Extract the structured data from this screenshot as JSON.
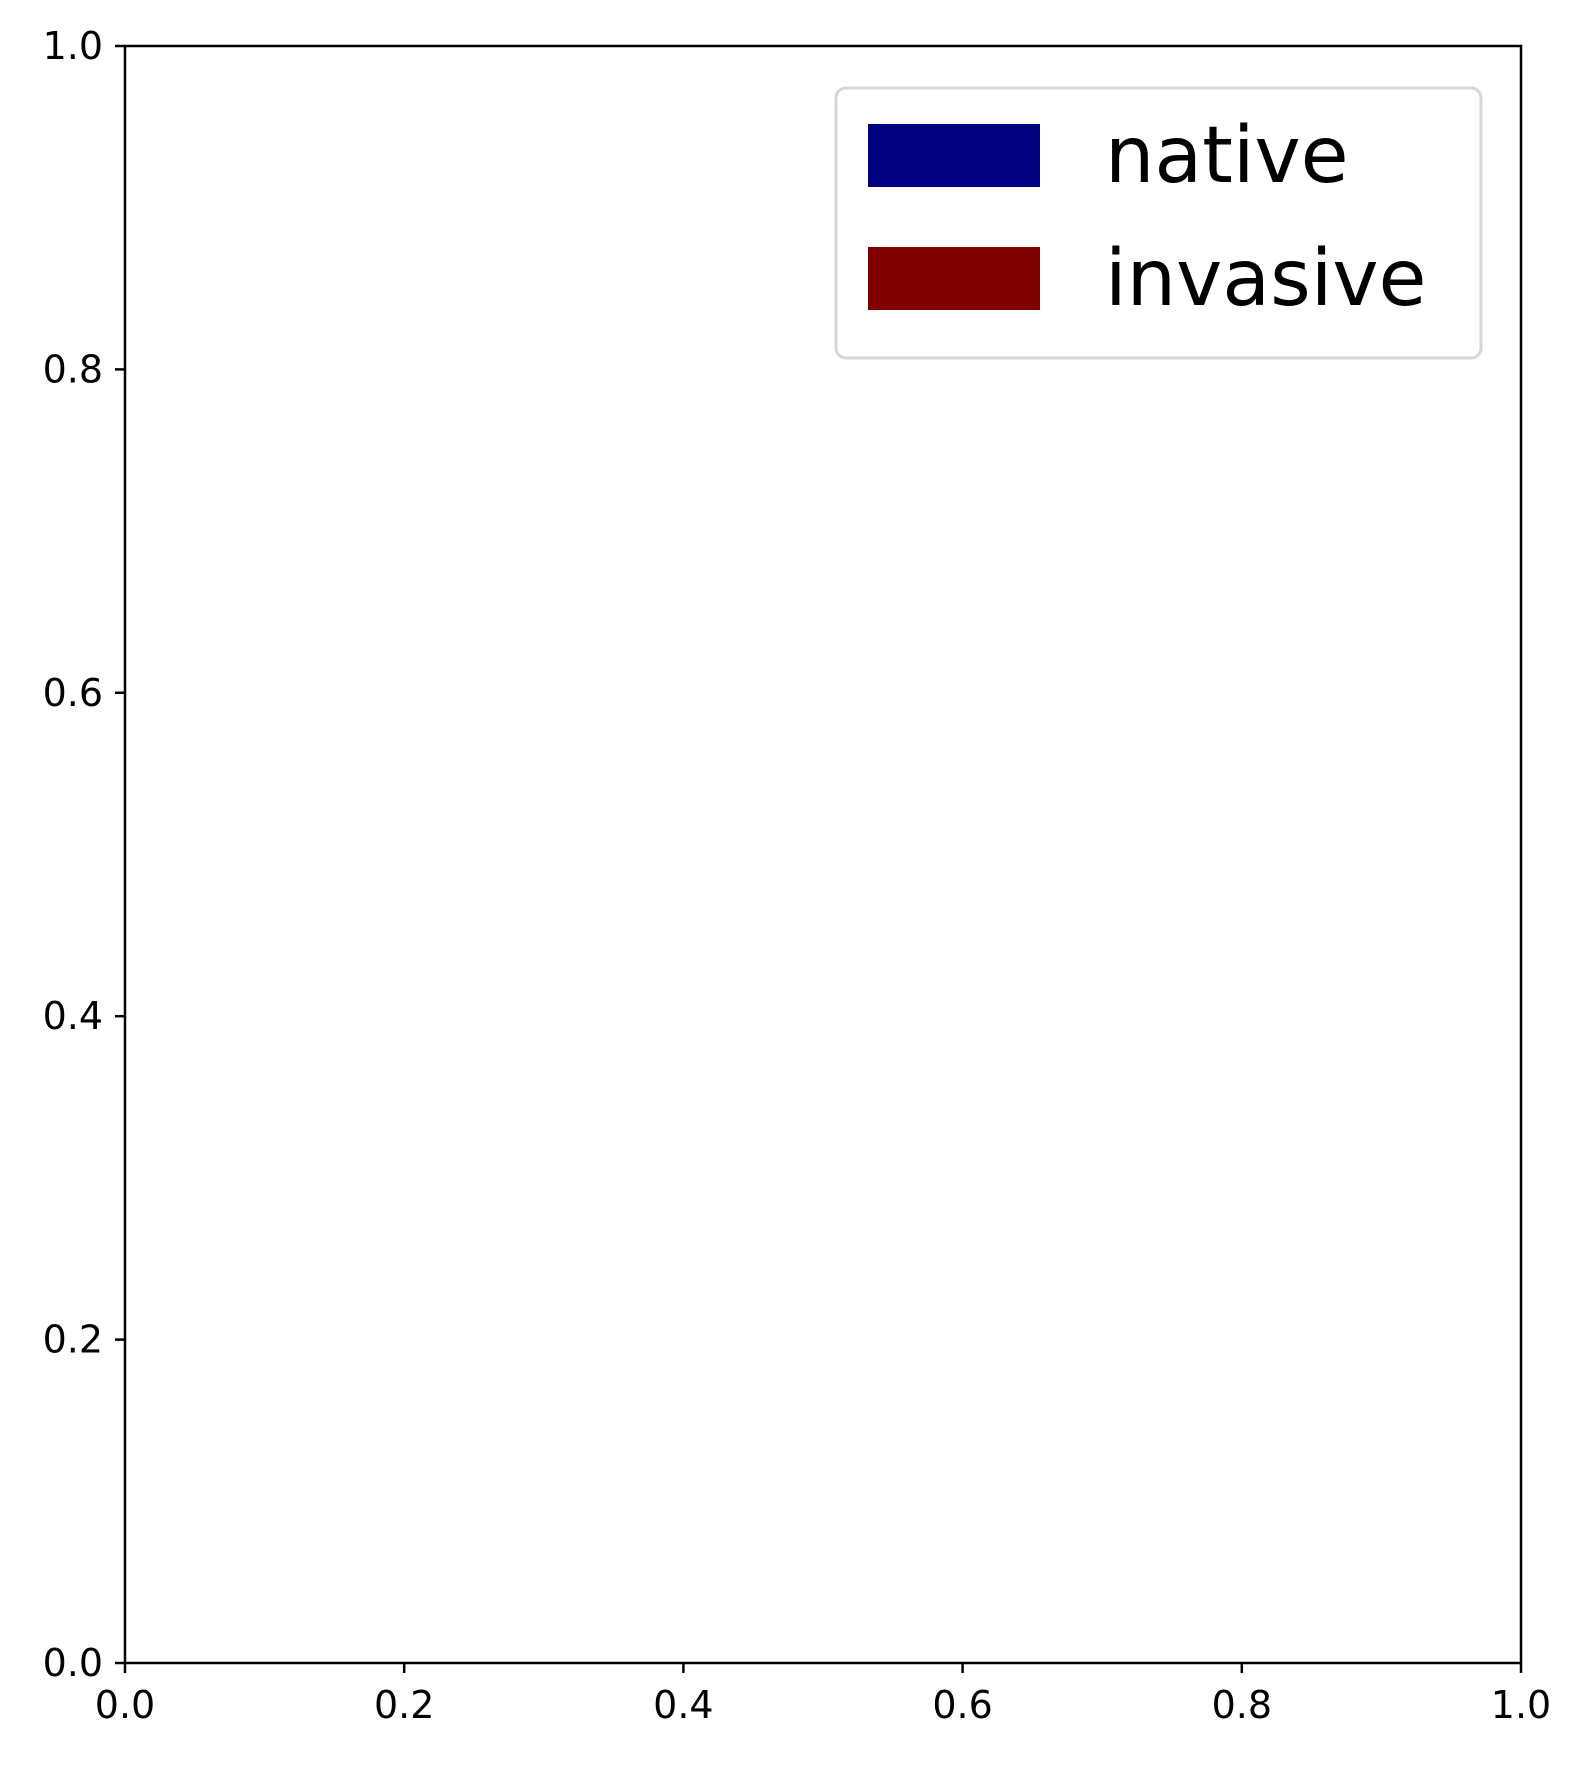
{
  "chart_data": {
    "type": "bar",
    "title": "",
    "xlabel": "",
    "ylabel": "",
    "xlim": [
      0.0,
      1.0
    ],
    "ylim": [
      0.0,
      1.0
    ],
    "x_ticks": [
      "0.0",
      "0.2",
      "0.4",
      "0.6",
      "0.8",
      "1.0"
    ],
    "y_ticks": [
      "0.0",
      "0.2",
      "0.4",
      "0.6",
      "0.8",
      "1.0"
    ],
    "grid": false,
    "legend_position": "top-right",
    "series": [
      {
        "name": "native",
        "color": "#000080",
        "values": []
      },
      {
        "name": "invasive",
        "color": "#800000",
        "values": []
      }
    ]
  }
}
